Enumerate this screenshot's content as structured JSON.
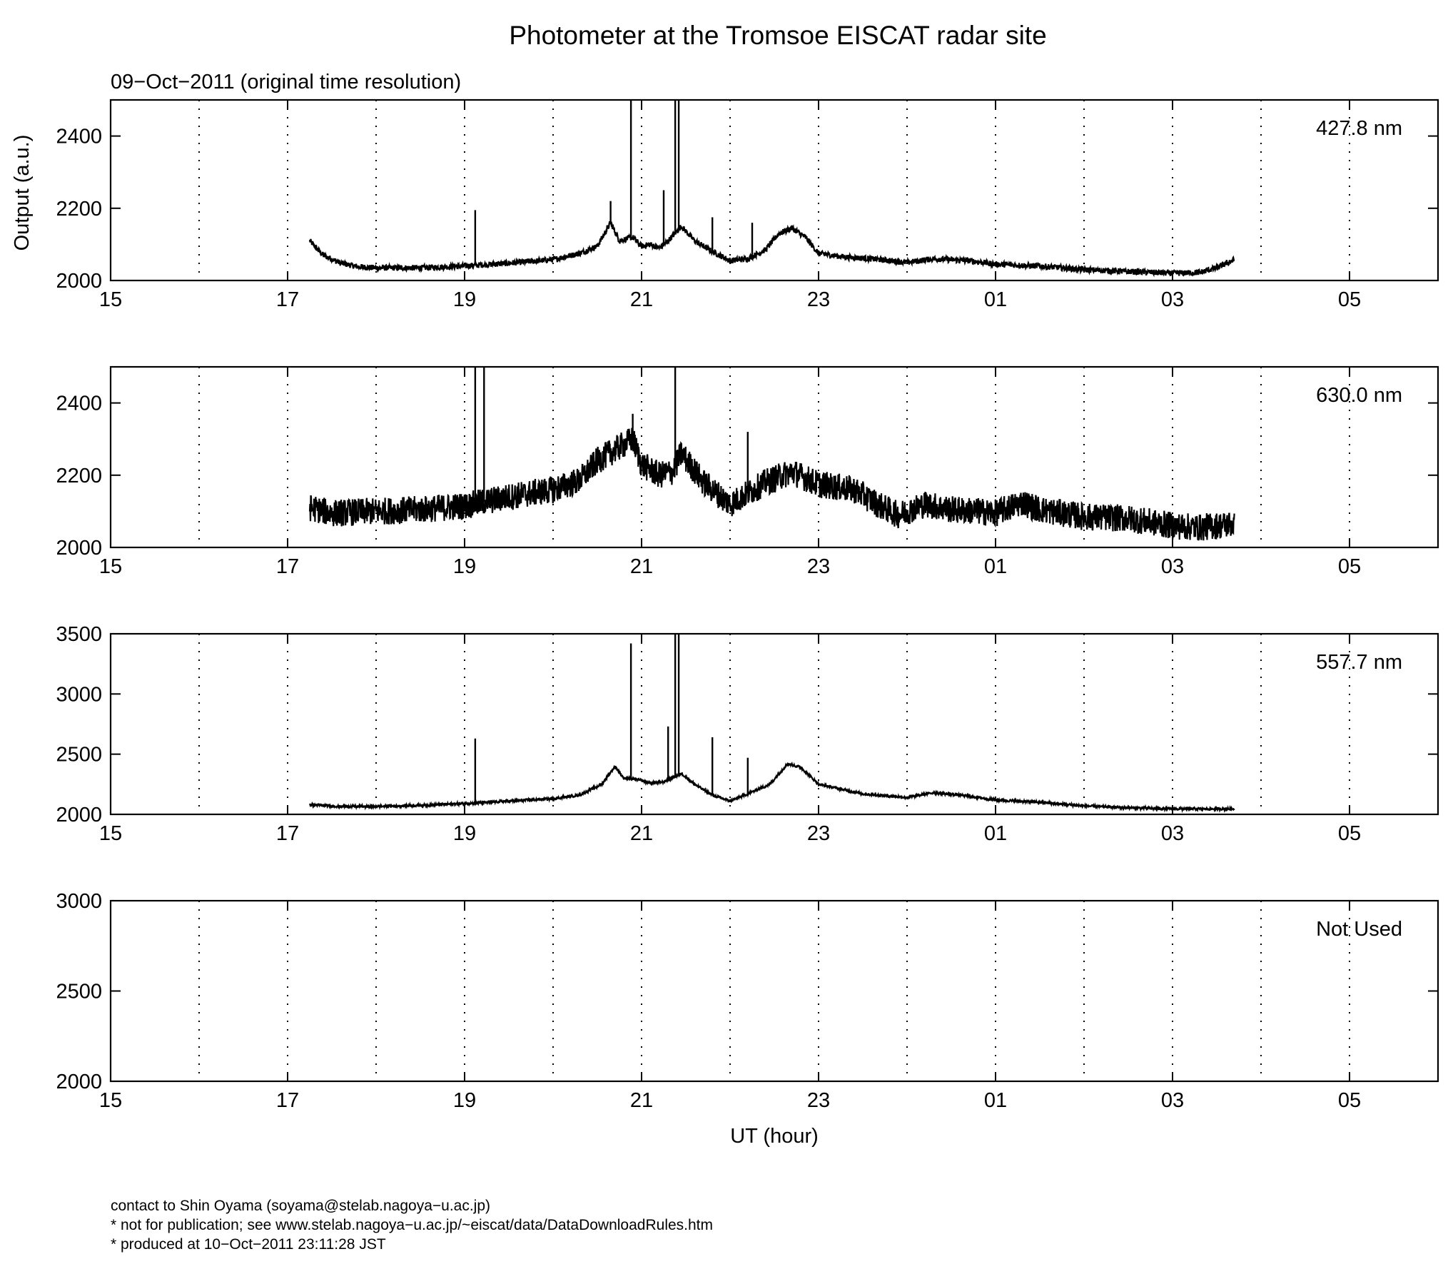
{
  "figure": {
    "title": "Photometer at the Tromsoe EISCAT radar site",
    "subtitle": "09−Oct−2011 (original time resolution)",
    "ylabel": "Output (a.u.)",
    "xlabel": "UT (hour)"
  },
  "footer": {
    "line1": "contact to Shin Oyama (soyama@stelab.nagoya−u.ac.jp)",
    "line2": "* not for publication; see www.stelab.nagoya−u.ac.jp/~eiscat/data/DataDownloadRules.htm",
    "line3": "* produced at 10−Oct−2011 23:11:28 JST"
  },
  "colors": {
    "trace": "#000000",
    "axes": "#000000",
    "background": "#ffffff"
  },
  "chart_data": [
    {
      "type": "line",
      "label": "427.8 nm",
      "xlim": [
        15,
        30
      ],
      "ylim": [
        2000,
        2500
      ],
      "xticks": [
        "15",
        "17",
        "19",
        "21",
        "23",
        "01",
        "03",
        "05"
      ],
      "yticks": [
        "2000",
        "2200",
        "2400"
      ],
      "grid": "dotted vertical lines every hour",
      "noise": 8,
      "x": [
        17.25,
        17.4,
        17.6,
        17.8,
        18.0,
        18.5,
        19.0,
        19.5,
        20.0,
        20.3,
        20.5,
        20.65,
        20.75,
        20.9,
        21.0,
        21.1,
        21.2,
        21.3,
        21.45,
        21.6,
        21.8,
        22.0,
        22.2,
        22.4,
        22.55,
        22.7,
        22.85,
        23.0,
        23.3,
        23.6,
        24.0,
        24.3,
        24.7,
        25.0,
        25.5,
        26.0,
        26.5,
        27.0,
        27.3,
        27.5,
        27.7
      ],
      "y": [
        2110,
        2070,
        2048,
        2038,
        2035,
        2035,
        2040,
        2048,
        2058,
        2075,
        2095,
        2160,
        2110,
        2120,
        2095,
        2100,
        2090,
        2110,
        2150,
        2110,
        2080,
        2055,
        2060,
        2085,
        2130,
        2145,
        2120,
        2075,
        2065,
        2060,
        2050,
        2060,
        2055,
        2045,
        2040,
        2030,
        2025,
        2020,
        2022,
        2035,
        2058
      ],
      "spikes": [
        {
          "x": 19.12,
          "y": 2195
        },
        {
          "x": 20.65,
          "y": 2220
        },
        {
          "x": 20.88,
          "y": 2500
        },
        {
          "x": 21.25,
          "y": 2250
        },
        {
          "x": 21.38,
          "y": 2500
        },
        {
          "x": 21.42,
          "y": 2500
        },
        {
          "x": 21.8,
          "y": 2175
        },
        {
          "x": 22.25,
          "y": 2160
        }
      ]
    },
    {
      "type": "line",
      "label": "630.0 nm",
      "xlim": [
        15,
        30
      ],
      "ylim": [
        2000,
        2500
      ],
      "xticks": [
        "15",
        "17",
        "19",
        "21",
        "23",
        "01",
        "03",
        "05"
      ],
      "yticks": [
        "2000",
        "2200",
        "2400"
      ],
      "grid": "dotted vertical lines every hour",
      "noise": 38,
      "x": [
        17.25,
        17.5,
        18.0,
        18.5,
        19.0,
        19.5,
        20.0,
        20.3,
        20.5,
        20.7,
        20.9,
        21.0,
        21.2,
        21.35,
        21.45,
        21.7,
        22.0,
        22.2,
        22.4,
        22.7,
        23.0,
        23.4,
        23.7,
        23.9,
        24.2,
        24.5,
        24.8,
        25.0,
        25.3,
        25.5,
        26.0,
        26.5,
        27.0,
        27.3,
        27.7
      ],
      "y": [
        2110,
        2095,
        2100,
        2105,
        2115,
        2140,
        2160,
        2185,
        2240,
        2270,
        2300,
        2230,
        2200,
        2210,
        2260,
        2180,
        2120,
        2150,
        2180,
        2210,
        2175,
        2160,
        2115,
        2090,
        2120,
        2105,
        2100,
        2095,
        2125,
        2105,
        2085,
        2080,
        2060,
        2055,
        2065
      ],
      "spikes": [
        {
          "x": 19.12,
          "y": 2500
        },
        {
          "x": 19.22,
          "y": 2500
        },
        {
          "x": 20.9,
          "y": 2370
        },
        {
          "x": 21.38,
          "y": 2500
        },
        {
          "x": 22.2,
          "y": 2320
        }
      ]
    },
    {
      "type": "line",
      "label": "557.7 nm",
      "xlim": [
        15,
        30
      ],
      "ylim": [
        2000,
        3500
      ],
      "xticks": [
        "15",
        "17",
        "19",
        "21",
        "23",
        "01",
        "03",
        "05"
      ],
      "yticks": [
        "2000",
        "2500",
        "3000",
        "3500"
      ],
      "grid": "dotted vertical lines every hour",
      "noise": 10,
      "x": [
        17.25,
        17.6,
        18.0,
        18.5,
        19.0,
        19.5,
        20.0,
        20.3,
        20.55,
        20.7,
        20.8,
        20.95,
        21.1,
        21.25,
        21.45,
        21.6,
        21.8,
        22.0,
        22.2,
        22.45,
        22.65,
        22.8,
        23.0,
        23.5,
        24.0,
        24.3,
        24.6,
        25.0,
        25.5,
        26.0,
        26.5,
        27.0,
        27.7
      ],
      "y": [
        2080,
        2065,
        2065,
        2075,
        2090,
        2110,
        2130,
        2160,
        2250,
        2400,
        2300,
        2290,
        2260,
        2270,
        2340,
        2250,
        2160,
        2110,
        2170,
        2250,
        2420,
        2390,
        2250,
        2170,
        2140,
        2180,
        2160,
        2120,
        2100,
        2070,
        2055,
        2045,
        2045
      ],
      "spikes": [
        {
          "x": 19.12,
          "y": 2630
        },
        {
          "x": 20.88,
          "y": 3420
        },
        {
          "x": 21.3,
          "y": 2730
        },
        {
          "x": 21.38,
          "y": 3500
        },
        {
          "x": 21.42,
          "y": 3500
        },
        {
          "x": 21.8,
          "y": 2640
        },
        {
          "x": 22.2,
          "y": 2470
        }
      ]
    },
    {
      "type": "line",
      "label": "Not Used",
      "xlim": [
        15,
        30
      ],
      "ylim": [
        2000,
        3000
      ],
      "xticks": [
        "15",
        "17",
        "19",
        "21",
        "23",
        "01",
        "03",
        "05"
      ],
      "yticks": [
        "2000",
        "2500",
        "3000"
      ],
      "grid": "dotted vertical lines every hour",
      "noise": 0,
      "x": [],
      "y": [],
      "spikes": []
    }
  ]
}
